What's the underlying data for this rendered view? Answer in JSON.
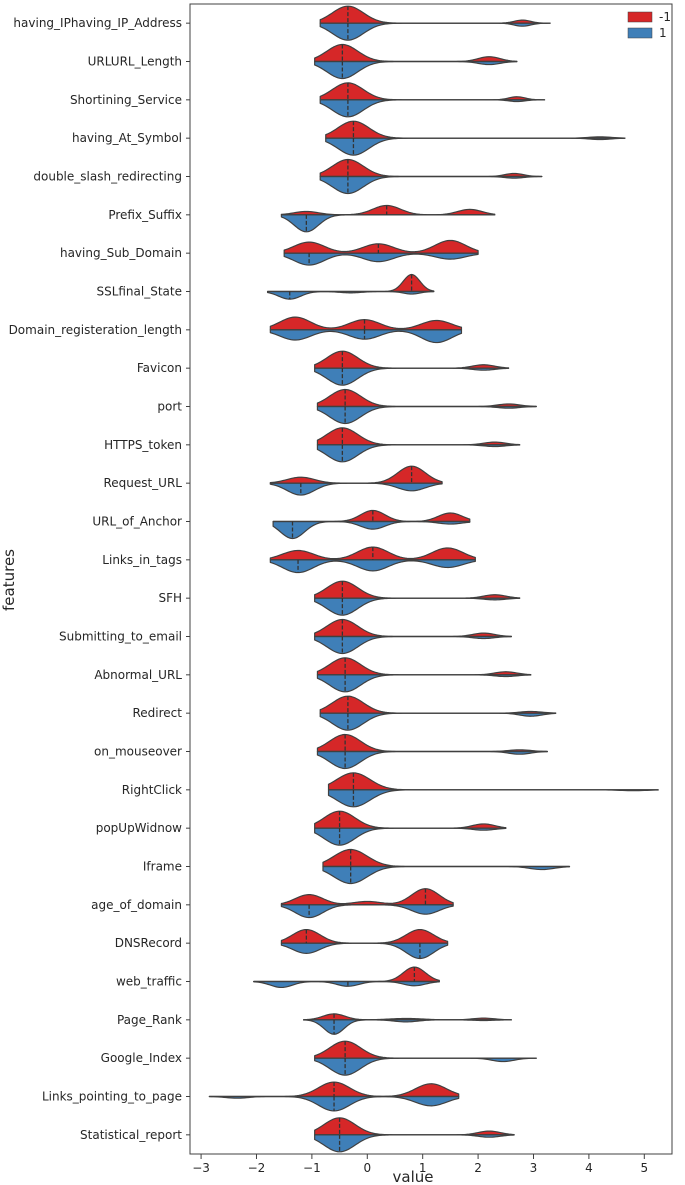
{
  "chart_data": {
    "type": "violin",
    "title": "",
    "xlabel": "value",
    "ylabel": "features",
    "xlim": [
      -3.2,
      5.5
    ],
    "xticks": [
      -3,
      -2,
      -1,
      0,
      1,
      2,
      3,
      4,
      5
    ],
    "legend": {
      "position": "top-right",
      "entries": [
        {
          "label": "-1",
          "color": "#d62728"
        },
        {
          "label": "1",
          "color": "#3f7fb8"
        }
      ]
    },
    "colors": {
      "neg": "#d62728",
      "pos": "#3f7fb8",
      "outline": "#404040"
    },
    "features": [
      {
        "name": "having_IPhaving_IP_Address",
        "range": [
          -0.85,
          3.3
        ],
        "neg": [
          [
            -0.35,
            1.0,
            0.28
          ],
          [
            2.8,
            0.18,
            0.15
          ]
        ],
        "pos": [
          [
            -0.35,
            1.0,
            0.28
          ],
          [
            2.8,
            0.18,
            0.15
          ]
        ],
        "medNeg": -0.35,
        "medPos": -0.35
      },
      {
        "name": "URLURL_Length",
        "range": [
          -0.95,
          2.7
        ],
        "neg": [
          [
            -0.45,
            1.0,
            0.28
          ],
          [
            2.2,
            0.28,
            0.2
          ]
        ],
        "pos": [
          [
            -0.45,
            1.0,
            0.28
          ],
          [
            2.2,
            0.18,
            0.2
          ]
        ],
        "medNeg": -0.45,
        "medPos": -0.45
      },
      {
        "name": "Shortining_Service",
        "range": [
          -0.85,
          3.2
        ],
        "neg": [
          [
            -0.35,
            1.0,
            0.28
          ],
          [
            2.7,
            0.18,
            0.15
          ]
        ],
        "pos": [
          [
            -0.35,
            1.0,
            0.28
          ],
          [
            2.7,
            0.1,
            0.15
          ]
        ],
        "medNeg": -0.35,
        "medPos": -0.35
      },
      {
        "name": "having_At_Symbol",
        "range": [
          -0.75,
          4.65
        ],
        "neg": [
          [
            -0.25,
            1.0,
            0.28
          ],
          [
            4.2,
            0.08,
            0.2
          ]
        ],
        "pos": [
          [
            -0.25,
            1.0,
            0.28
          ],
          [
            4.2,
            0.08,
            0.2
          ]
        ],
        "medNeg": -0.25,
        "medPos": -0.25
      },
      {
        "name": "double_slash_redirecting",
        "range": [
          -0.85,
          3.15
        ],
        "neg": [
          [
            -0.35,
            1.0,
            0.28
          ],
          [
            2.65,
            0.18,
            0.17
          ]
        ],
        "pos": [
          [
            -0.35,
            1.0,
            0.28
          ],
          [
            2.65,
            0.1,
            0.17
          ]
        ],
        "medNeg": -0.35,
        "medPos": -0.35
      },
      {
        "name": "Prefix_Suffix",
        "range": [
          -1.55,
          2.3
        ],
        "neg": [
          [
            -1.1,
            0.2,
            0.22
          ],
          [
            0.35,
            0.55,
            0.25
          ],
          [
            1.85,
            0.32,
            0.22
          ]
        ],
        "pos": [
          [
            -1.1,
            1.0,
            0.22
          ]
        ],
        "medNeg": 0.35,
        "medPos": -1.1
      },
      {
        "name": "having_Sub_Domain",
        "range": [
          -1.5,
          2.0
        ],
        "neg": [
          [
            -1.05,
            0.65,
            0.28
          ],
          [
            0.2,
            0.55,
            0.28
          ],
          [
            1.5,
            0.75,
            0.28
          ]
        ],
        "pos": [
          [
            -1.05,
            0.7,
            0.28
          ],
          [
            0.2,
            0.5,
            0.28
          ],
          [
            1.5,
            0.35,
            0.28
          ]
        ],
        "medNeg": 0.2,
        "medPos": -1.05
      },
      {
        "name": "SSLfinal_State",
        "range": [
          -1.8,
          1.2
        ],
        "neg": [
          [
            0.8,
            1.0,
            0.15
          ]
        ],
        "pos": [
          [
            -1.4,
            0.45,
            0.2
          ],
          [
            -0.3,
            0.08,
            0.2
          ],
          [
            0.8,
            0.15,
            0.15
          ]
        ],
        "medNeg": 0.8,
        "medPos": -1.4
      },
      {
        "name": "Domain_registeration_length",
        "range": [
          -1.75,
          1.7
        ],
        "neg": [
          [
            -1.3,
            0.75,
            0.28
          ],
          [
            -0.05,
            0.6,
            0.28
          ],
          [
            1.25,
            0.55,
            0.28
          ]
        ],
        "pos": [
          [
            -1.3,
            0.6,
            0.28
          ],
          [
            -0.05,
            0.55,
            0.28
          ],
          [
            1.25,
            0.75,
            0.28
          ]
        ],
        "medNeg": -0.05,
        "medPos": -0.05
      },
      {
        "name": "Favicon",
        "range": [
          -0.95,
          2.55
        ],
        "neg": [
          [
            -0.45,
            1.0,
            0.28
          ],
          [
            2.1,
            0.2,
            0.2
          ]
        ],
        "pos": [
          [
            -0.45,
            1.0,
            0.28
          ],
          [
            2.1,
            0.12,
            0.2
          ]
        ],
        "medNeg": -0.45,
        "medPos": -0.45
      },
      {
        "name": "port",
        "range": [
          -0.9,
          3.05
        ],
        "neg": [
          [
            -0.4,
            1.0,
            0.28
          ],
          [
            2.55,
            0.15,
            0.2
          ]
        ],
        "pos": [
          [
            -0.4,
            1.0,
            0.28
          ],
          [
            2.55,
            0.1,
            0.2
          ]
        ],
        "medNeg": -0.4,
        "medPos": -0.4
      },
      {
        "name": "HTTPS_token",
        "range": [
          -0.9,
          2.75
        ],
        "neg": [
          [
            -0.45,
            1.0,
            0.28
          ],
          [
            2.3,
            0.16,
            0.2
          ]
        ],
        "pos": [
          [
            -0.45,
            1.0,
            0.28
          ],
          [
            2.3,
            0.1,
            0.2
          ]
        ],
        "medNeg": -0.45,
        "medPos": -0.45
      },
      {
        "name": "Request_URL",
        "range": [
          -1.75,
          1.35
        ],
        "neg": [
          [
            -1.2,
            0.35,
            0.25
          ],
          [
            0.8,
            1.0,
            0.25
          ]
        ],
        "pos": [
          [
            -1.2,
            0.7,
            0.25
          ],
          [
            0.8,
            0.45,
            0.25
          ]
        ],
        "medNeg": 0.8,
        "medPos": -1.2
      },
      {
        "name": "URL_of_Anchor",
        "range": [
          -1.7,
          1.85
        ],
        "neg": [
          [
            0.1,
            0.65,
            0.22
          ],
          [
            1.5,
            0.5,
            0.22
          ]
        ],
        "pos": [
          [
            -1.35,
            1.0,
            0.22
          ],
          [
            0.1,
            0.45,
            0.22
          ],
          [
            1.5,
            0.15,
            0.22
          ]
        ],
        "medNeg": 0.1,
        "medPos": -1.35
      },
      {
        "name": "Links_in_tags",
        "range": [
          -1.75,
          1.95
        ],
        "neg": [
          [
            -1.25,
            0.55,
            0.28
          ],
          [
            0.1,
            0.75,
            0.28
          ],
          [
            1.45,
            0.7,
            0.28
          ]
        ],
        "pos": [
          [
            -1.25,
            0.75,
            0.28
          ],
          [
            0.1,
            0.65,
            0.28
          ],
          [
            1.45,
            0.45,
            0.28
          ]
        ],
        "medNeg": 0.1,
        "medPos": -1.25
      },
      {
        "name": "SFH",
        "range": [
          -0.95,
          2.75
        ],
        "neg": [
          [
            -0.45,
            1.0,
            0.28
          ],
          [
            2.3,
            0.2,
            0.2
          ]
        ],
        "pos": [
          [
            -0.45,
            1.0,
            0.28
          ],
          [
            2.3,
            0.1,
            0.2
          ]
        ],
        "medNeg": -0.45,
        "medPos": -0.45
      },
      {
        "name": "Submitting_to_email",
        "range": [
          -0.95,
          2.6
        ],
        "neg": [
          [
            -0.45,
            1.0,
            0.28
          ],
          [
            2.1,
            0.2,
            0.2
          ]
        ],
        "pos": [
          [
            -0.45,
            1.0,
            0.28
          ],
          [
            2.1,
            0.12,
            0.2
          ]
        ],
        "medNeg": -0.45,
        "medPos": -0.45
      },
      {
        "name": "Abnormal_URL",
        "range": [
          -0.9,
          2.95
        ],
        "neg": [
          [
            -0.4,
            1.0,
            0.28
          ],
          [
            2.5,
            0.18,
            0.2
          ]
        ],
        "pos": [
          [
            -0.4,
            1.0,
            0.28
          ],
          [
            2.5,
            0.1,
            0.2
          ]
        ],
        "medNeg": -0.4,
        "medPos": -0.4
      },
      {
        "name": "Redirect",
        "range": [
          -0.85,
          3.4
        ],
        "neg": [
          [
            -0.35,
            1.0,
            0.28
          ],
          [
            2.95,
            0.1,
            0.2
          ]
        ],
        "pos": [
          [
            -0.35,
            1.0,
            0.28
          ],
          [
            2.95,
            0.18,
            0.2
          ]
        ],
        "medNeg": -0.35,
        "medPos": -0.35
      },
      {
        "name": "on_mouseover",
        "range": [
          -0.9,
          3.25
        ],
        "neg": [
          [
            -0.4,
            1.0,
            0.28
          ],
          [
            2.75,
            0.1,
            0.2
          ]
        ],
        "pos": [
          [
            -0.4,
            1.0,
            0.28
          ],
          [
            2.75,
            0.16,
            0.2
          ]
        ],
        "medNeg": -0.4,
        "medPos": -0.4
      },
      {
        "name": "RightClick",
        "range": [
          -0.7,
          5.25
        ],
        "neg": [
          [
            -0.25,
            1.0,
            0.3
          ]
        ],
        "pos": [
          [
            -0.25,
            1.0,
            0.3
          ],
          [
            4.8,
            0.05,
            0.25
          ]
        ],
        "medNeg": -0.25,
        "medPos": -0.25
      },
      {
        "name": "popUpWidnow",
        "range": [
          -0.95,
          2.5
        ],
        "neg": [
          [
            -0.5,
            1.0,
            0.28
          ],
          [
            2.1,
            0.25,
            0.2
          ]
        ],
        "pos": [
          [
            -0.5,
            1.0,
            0.28
          ],
          [
            2.1,
            0.12,
            0.2
          ]
        ],
        "medNeg": -0.5,
        "medPos": -0.5
      },
      {
        "name": "Iframe",
        "range": [
          -0.8,
          3.65
        ],
        "neg": [
          [
            -0.3,
            1.0,
            0.3
          ]
        ],
        "pos": [
          [
            -0.3,
            1.0,
            0.3
          ],
          [
            3.15,
            0.18,
            0.22
          ]
        ],
        "medNeg": -0.3,
        "medPos": -0.3
      },
      {
        "name": "age_of_domain",
        "range": [
          -1.55,
          1.55
        ],
        "neg": [
          [
            -1.05,
            0.6,
            0.25
          ],
          [
            0.0,
            0.2,
            0.25
          ],
          [
            1.05,
            0.95,
            0.25
          ]
        ],
        "pos": [
          [
            -1.05,
            0.75,
            0.25
          ],
          [
            1.05,
            0.55,
            0.25
          ]
        ],
        "medNeg": 1.05,
        "medPos": -1.05
      },
      {
        "name": "DNSRecord",
        "range": [
          -1.55,
          1.45
        ],
        "neg": [
          [
            -1.1,
            0.8,
            0.25
          ],
          [
            0.95,
            0.8,
            0.25
          ]
        ],
        "pos": [
          [
            -1.1,
            0.6,
            0.25
          ],
          [
            0.95,
            0.9,
            0.25
          ]
        ],
        "medNeg": -1.1,
        "medPos": 0.95
      },
      {
        "name": "web_traffic",
        "range": [
          -2.05,
          1.3
        ],
        "neg": [
          [
            0.85,
            0.85,
            0.2
          ]
        ],
        "pos": [
          [
            -1.55,
            0.35,
            0.2
          ],
          [
            -0.35,
            0.28,
            0.2
          ],
          [
            0.85,
            0.25,
            0.2
          ]
        ],
        "medNeg": 0.85,
        "medPos": -0.35
      },
      {
        "name": "Page_Rank",
        "range": [
          -1.15,
          2.6
        ],
        "neg": [
          [
            -0.6,
            0.35,
            0.2
          ],
          [
            0.7,
            0.08,
            0.3
          ],
          [
            2.1,
            0.1,
            0.2
          ]
        ],
        "pos": [
          [
            -0.6,
            0.85,
            0.18
          ],
          [
            0.7,
            0.12,
            0.22
          ],
          [
            2.1,
            0.04,
            0.2
          ]
        ],
        "medNeg": -0.6,
        "medPos": -0.6
      },
      {
        "name": "Google_Index",
        "range": [
          -0.95,
          3.05
        ],
        "neg": [
          [
            -0.4,
            1.0,
            0.28
          ]
        ],
        "pos": [
          [
            -0.4,
            1.0,
            0.28
          ],
          [
            2.45,
            0.2,
            0.2
          ]
        ],
        "medNeg": -0.4,
        "medPos": -0.4
      },
      {
        "name": "Links_pointing_to_page",
        "range": [
          -2.85,
          1.65
        ],
        "neg": [
          [
            -0.6,
            0.85,
            0.28
          ],
          [
            1.15,
            0.75,
            0.28
          ]
        ],
        "pos": [
          [
            -2.35,
            0.1,
            0.2
          ],
          [
            -0.6,
            0.85,
            0.28
          ],
          [
            1.15,
            0.55,
            0.28
          ]
        ],
        "medNeg": -0.6,
        "medPos": -0.6
      },
      {
        "name": "Statistical_report",
        "range": [
          -0.95,
          2.65
        ],
        "neg": [
          [
            -0.5,
            1.0,
            0.28
          ],
          [
            2.2,
            0.22,
            0.2
          ]
        ],
        "pos": [
          [
            -0.5,
            1.0,
            0.28
          ],
          [
            2.2,
            0.14,
            0.2
          ]
        ],
        "medNeg": -0.5,
        "medPos": -0.5
      }
    ]
  }
}
